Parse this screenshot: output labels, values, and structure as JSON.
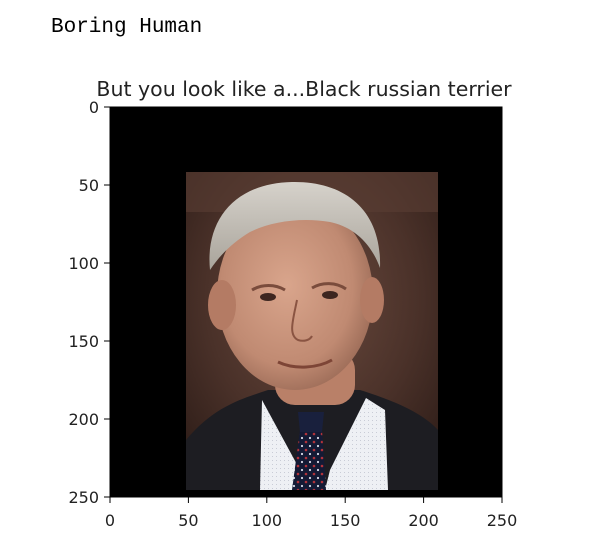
{
  "output": {
    "text": "Boring Human"
  },
  "figure": {
    "title": "But you look like a...Black russian terrier",
    "image": {
      "description_icon": "portrait-photo",
      "background": "#000000"
    },
    "x_ticks": [
      "0",
      "50",
      "100",
      "150",
      "200",
      "250"
    ],
    "y_ticks": [
      "0",
      "50",
      "100",
      "150",
      "200",
      "250"
    ],
    "x_range": [
      0,
      250
    ],
    "y_range": [
      0,
      250
    ],
    "y_inverted": true
  }
}
